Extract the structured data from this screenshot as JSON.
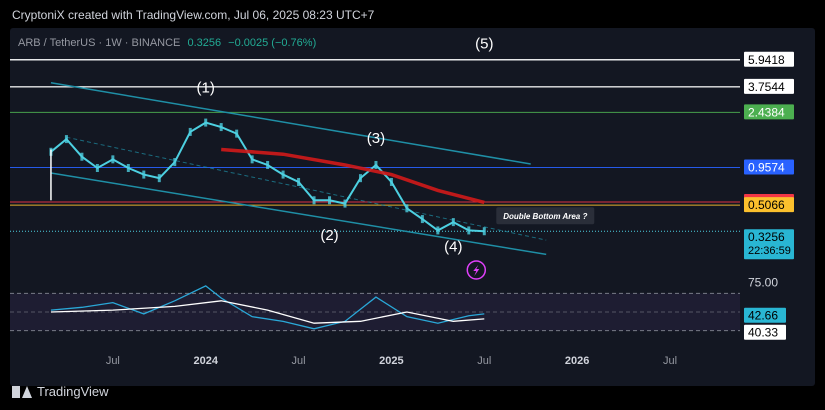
{
  "attribution": "CryptoniX created with TradingView.com, Jul 06, 2025 08:23 UTC+7",
  "symbol": {
    "pair": "ARB / TetherUS · 1W · BINANCE",
    "price": "0.3256",
    "change": "−0.0025 (−0.76%)"
  },
  "brand": "TradingView",
  "colors": {
    "background": "#131722",
    "candle_up": "#4dd0e1",
    "wave_channel": "#1f8fa6",
    "ma_line": "#d11a1a",
    "rsi_line": "#2aa8d8",
    "rsi_ma": "#ffffff",
    "price_tag": "#29b6d3"
  },
  "chart_data": [
    {
      "type": "line",
      "title": "",
      "price_scale": "log",
      "ylim": [
        0.2,
        7.5
      ],
      "x_ticks": [
        {
          "label": "Jul",
          "x": "2023-07"
        },
        {
          "label": "2024",
          "x": "2024-01"
        },
        {
          "label": "Jul",
          "x": "2024-07"
        },
        {
          "label": "2025",
          "x": "2025-01"
        },
        {
          "label": "Jul",
          "x": "2025-07"
        },
        {
          "label": "2026",
          "x": "2026-01"
        },
        {
          "label": "Jul",
          "x": "2026-07"
        }
      ],
      "series": [
        {
          "values_x": [
            "2023-03",
            "2023-04",
            "2023-05",
            "2023-06",
            "2023-07",
            "2023-08",
            "2023-09",
            "2023-10",
            "2023-11",
            "2023-12",
            "2024-01",
            "2024-02",
            "2024-03",
            "2024-04",
            "2024-05",
            "2024-06",
            "2024-07",
            "2024-08",
            "2024-09",
            "2024-10",
            "2024-11",
            "2024-12",
            "2025-01",
            "2025-02",
            "2025-03",
            "2025-04",
            "2025-05",
            "2025-06",
            "2025-07"
          ],
          "values_y": [
            1.25,
            1.55,
            1.15,
            0.95,
            1.1,
            0.95,
            0.85,
            0.8,
            1.05,
            1.75,
            2.05,
            1.9,
            1.7,
            1.1,
            1.0,
            0.85,
            0.75,
            0.55,
            0.55,
            0.52,
            0.8,
            1.0,
            0.75,
            0.48,
            0.4,
            0.33,
            0.38,
            0.33,
            0.3256
          ]
        },
        {
          "values_x": [
            "2024-02",
            "2024-06",
            "2024-10",
            "2025-01",
            "2025-04",
            "2025-07"
          ],
          "values_y": [
            1.3,
            1.2,
            1.0,
            0.85,
            0.65,
            0.53
          ]
        }
      ],
      "price_levels": [
        {
          "value": "5.9418",
          "y": 5.9418,
          "color": "#ffffff"
        },
        {
          "value": "3.7544",
          "y": 3.7544,
          "color": "#ffffff"
        },
        {
          "value": "2.4384",
          "y": 2.4384,
          "color": "#4caf50"
        },
        {
          "value": "0.9574",
          "y": 0.9574,
          "color": "#2962ff"
        },
        {
          "value": "0.5346",
          "y": 0.5346,
          "color": "#f23645"
        },
        {
          "value": "0.5066",
          "y": 0.5066,
          "color": "#fbc02d"
        }
      ],
      "current_price": {
        "value": "0.3256",
        "countdown": "22:36:59"
      },
      "wave_labels": [
        {
          "label": "(1)",
          "x": "2024-01",
          "y": 3.4
        },
        {
          "label": "(2)",
          "x": "2024-09",
          "y": 0.28
        },
        {
          "label": "(3)",
          "x": "2024-12",
          "y": 1.45
        },
        {
          "label": "(4)",
          "x": "2025-05",
          "y": 0.23
        },
        {
          "label": "(5)",
          "x": "2025-07",
          "y": 7.2
        }
      ],
      "annotation": "Double Bottom Area ?"
    },
    {
      "type": "line",
      "title": "",
      "ylim": [
        20,
        80
      ],
      "levels": [
        "75.00",
        "40.33"
      ],
      "current": "42.66",
      "series": [
        {
          "values_x": [
            "2023-03",
            "2023-05",
            "2023-07",
            "2023-09",
            "2023-11",
            "2024-01",
            "2024-02",
            "2024-04",
            "2024-06",
            "2024-08",
            "2024-10",
            "2024-12",
            "2025-02",
            "2025-04",
            "2025-06",
            "2025-07"
          ],
          "values_y": [
            52,
            55,
            60,
            48,
            62,
            78,
            65,
            45,
            40,
            32,
            40,
            66,
            45,
            38,
            46,
            48
          ]
        },
        {
          "values_x": [
            "2023-03",
            "2023-07",
            "2023-11",
            "2024-02",
            "2024-05",
            "2024-08",
            "2024-11",
            "2025-02",
            "2025-05",
            "2025-07"
          ],
          "values_y": [
            50,
            52,
            56,
            62,
            52,
            38,
            40,
            50,
            40,
            42.66
          ]
        }
      ]
    }
  ]
}
